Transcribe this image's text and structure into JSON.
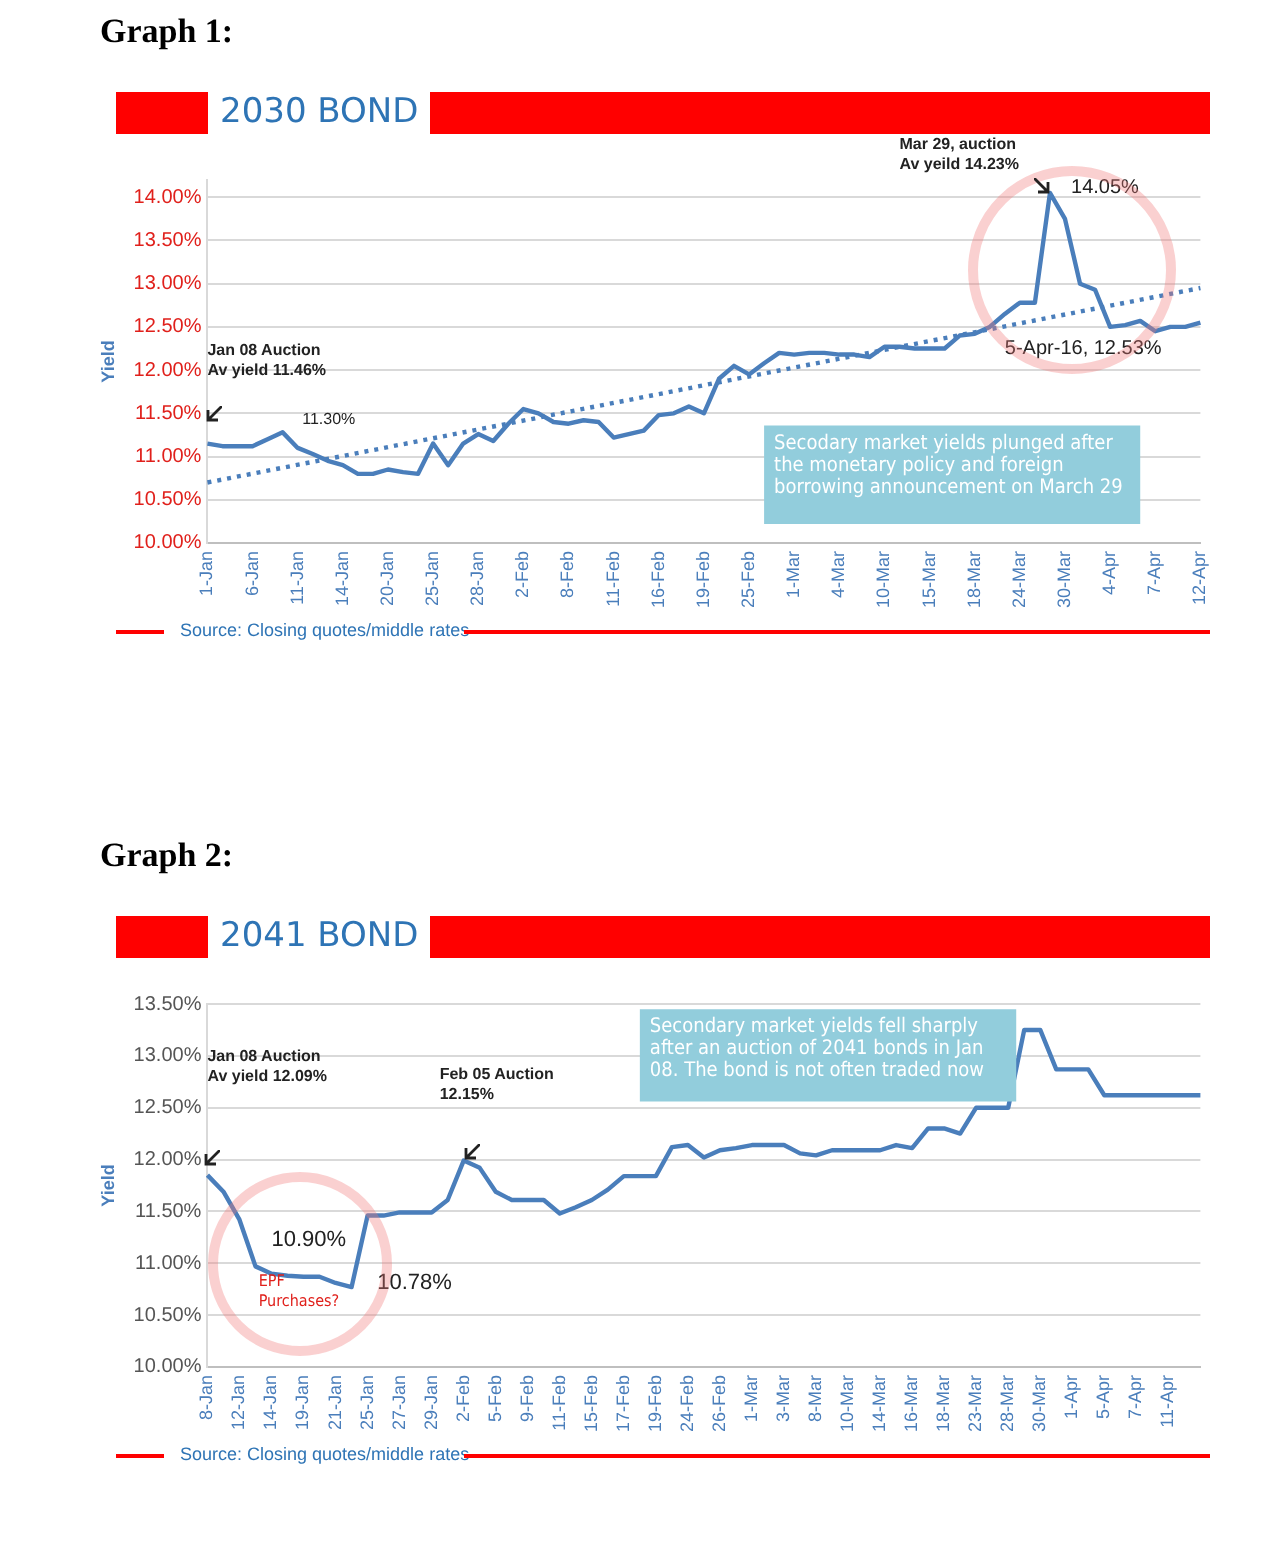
{
  "chart_data": [
    {
      "type": "line",
      "title": "2030 BOND",
      "ylabel": "Yield",
      "categories": [
        "1-Jan",
        null,
        null,
        "6-Jan",
        null,
        null,
        "11-Jan",
        null,
        null,
        "14-Jan",
        null,
        null,
        "20-Jan",
        null,
        null,
        "25-Jan",
        null,
        null,
        "28-Jan",
        null,
        null,
        "2-Feb",
        null,
        null,
        "8-Feb",
        null,
        null,
        "11-Feb",
        null,
        null,
        "16-Feb",
        null,
        null,
        "19-Feb",
        null,
        null,
        "25-Feb",
        null,
        null,
        "1-Mar",
        null,
        null,
        "4-Mar",
        null,
        null,
        "10-Mar",
        null,
        null,
        "15-Mar",
        null,
        null,
        "18-Mar",
        null,
        null,
        "24-Mar",
        null,
        null,
        "30-Mar",
        null,
        null,
        "4-Apr",
        null,
        null,
        "7-Apr",
        null,
        null,
        "12-Apr"
      ],
      "series": [
        {
          "type": "line",
          "color": "#4a7ebb",
          "values": [
            11.15,
            11.12,
            11.12,
            11.12,
            11.2,
            11.28,
            11.1,
            11.03,
            10.95,
            10.9,
            10.8,
            10.8,
            10.85,
            10.82,
            10.8,
            11.15,
            10.9,
            11.15,
            11.26,
            11.18,
            11.38,
            11.55,
            11.5,
            11.4,
            11.38,
            11.42,
            11.4,
            11.22,
            11.26,
            11.3,
            11.48,
            11.5,
            11.58,
            11.5,
            11.9,
            12.05,
            11.95,
            12.08,
            12.2,
            12.18,
            12.2,
            12.2,
            12.18,
            12.18,
            12.15,
            12.27,
            12.27,
            12.25,
            12.25,
            12.25,
            12.4,
            12.42,
            12.5,
            12.65,
            12.78,
            12.78,
            14.05,
            13.75,
            13.0,
            12.93,
            12.5,
            12.52,
            12.57,
            12.45,
            12.5,
            12.5,
            12.55
          ]
        },
        {
          "type": "line",
          "color": "#4a7ebb",
          "line_style": "dotted",
          "values": [
            10.7,
            null,
            null,
            null,
            null,
            null,
            null,
            null,
            null,
            null,
            null,
            null,
            null,
            null,
            null,
            null,
            null,
            null,
            null,
            null,
            null,
            null,
            null,
            null,
            null,
            null,
            null,
            null,
            null,
            null,
            null,
            null,
            null,
            null,
            null,
            null,
            null,
            null,
            null,
            null,
            null,
            null,
            null,
            null,
            null,
            null,
            null,
            null,
            null,
            null,
            null,
            null,
            null,
            null,
            null,
            null,
            null,
            null,
            null,
            null,
            null,
            null,
            null,
            null,
            null,
            null,
            12.95
          ]
        }
      ],
      "ylim": [
        10,
        14.2
      ],
      "yticks": [
        {
          "value": 10,
          "label": "10.00%"
        },
        {
          "value": 10.5,
          "label": "10.50%"
        },
        {
          "value": 11,
          "label": "11.00%"
        },
        {
          "value": 11.5,
          "label": "11.50%"
        },
        {
          "value": 12,
          "label": "12.00%"
        },
        {
          "value": 12.5,
          "label": "12.50%"
        },
        {
          "value": 13,
          "label": "13.00%"
        },
        {
          "value": 13.5,
          "label": "13.50%"
        },
        {
          "value": 14,
          "label": "14.00%"
        }
      ],
      "grid": "y",
      "legend": false,
      "marker": "none",
      "line_style": "solid",
      "annotations": [
        "Graph 1:",
        "Jan 08 Auction\nAv yield 11.46%",
        "11.30%",
        "Mar 29, auction\nAv yeild 14.23%",
        "14.05%",
        "5-Apr-16, 12.53%",
        "Secodary market yields plunged after the monetary policy and foreign borrowing announcement on March 29",
        "Source: Closing quotes/middle rates"
      ]
    },
    {
      "type": "line",
      "title": "2041 BOND",
      "ylabel": "Yield",
      "categories": [
        "8-Jan",
        null,
        "12-Jan",
        null,
        "14-Jan",
        null,
        "19-Jan",
        null,
        "21-Jan",
        null,
        "25-Jan",
        null,
        "27-Jan",
        null,
        "29-Jan",
        null,
        "2-Feb",
        null,
        "5-Feb",
        null,
        "9-Feb",
        null,
        "11-Feb",
        null,
        "15-Feb",
        null,
        "17-Feb",
        null,
        "19-Feb",
        null,
        "24-Feb",
        null,
        "26-Feb",
        null,
        "1-Mar",
        null,
        "3-Mar",
        null,
        "8-Mar",
        null,
        "10-Mar",
        null,
        "14-Mar",
        null,
        "16-Mar",
        null,
        "18-Mar",
        null,
        "23-Mar",
        null,
        "28-Mar",
        null,
        "30-Mar",
        null,
        "1-Apr",
        null,
        "5-Apr",
        null,
        "7-Apr",
        null,
        "11-Apr",
        null,
        null
      ],
      "series": [
        {
          "type": "line",
          "color": "#4a7ebb",
          "values": [
            11.85,
            11.69,
            11.42,
            10.97,
            10.9,
            10.88,
            10.87,
            10.87,
            10.81,
            10.77,
            11.46,
            11.46,
            11.49,
            11.49,
            11.49,
            11.61,
            11.99,
            11.92,
            11.69,
            11.61,
            11.61,
            11.61,
            11.48,
            11.54,
            11.61,
            11.71,
            11.84,
            11.84,
            11.84,
            12.12,
            12.14,
            12.02,
            12.09,
            12.11,
            12.14,
            12.14,
            12.14,
            12.06,
            12.04,
            12.09,
            12.09,
            12.09,
            12.09,
            12.14,
            12.11,
            12.3,
            12.3,
            12.25,
            12.5,
            12.5,
            12.5,
            13.25,
            13.25,
            12.87,
            12.87,
            12.87,
            12.62,
            12.62,
            12.62,
            12.62,
            12.62,
            12.62,
            12.62
          ]
        }
      ],
      "ylim": [
        10,
        13.5
      ],
      "yticks": [
        {
          "value": 10,
          "label": "10.00%"
        },
        {
          "value": 10.5,
          "label": "10.50%"
        },
        {
          "value": 11,
          "label": "11.00%"
        },
        {
          "value": 11.5,
          "label": "11.50%"
        },
        {
          "value": 12,
          "label": "12.00%"
        },
        {
          "value": 12.5,
          "label": "12.50%"
        },
        {
          "value": 13,
          "label": "13.00%"
        },
        {
          "value": 13.5,
          "label": "13.50%"
        }
      ],
      "grid": "y",
      "legend": false,
      "marker": "none",
      "line_style": "solid",
      "annotations": [
        "Graph 2:",
        "Jan 08 Auction\nAv yield 12.09%",
        "Feb 05 Auction\n12.15%",
        "10.90%",
        "10.78%",
        "EPF\nPurchases?",
        "Secondary market yields fell sharply after an auction of 2041 bonds in Jan 08. The bond is not often traded now",
        "Source: Closing quotes/middle rates"
      ]
    }
  ]
}
